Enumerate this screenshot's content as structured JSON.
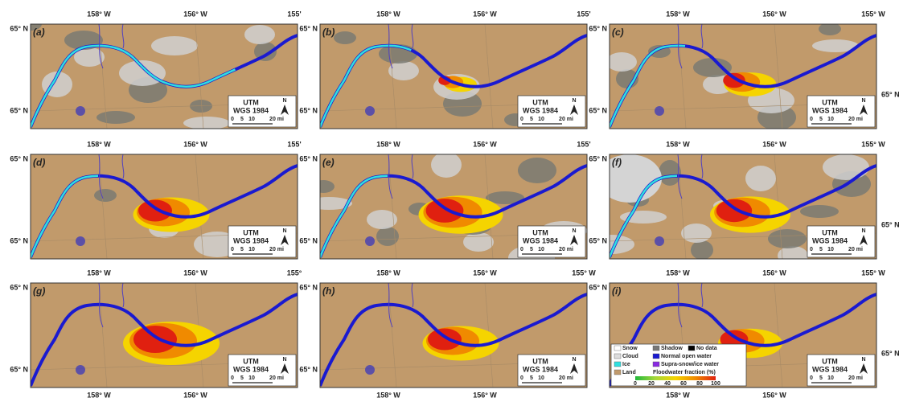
{
  "panels": [
    {
      "label": "(a)",
      "top": [
        "158° W",
        "156° W",
        "155'"
      ],
      "left": [
        "65° N",
        "65° N"
      ]
    },
    {
      "label": "(b)",
      "top": [
        "158° W",
        "156° W",
        "155'"
      ],
      "left": [
        "65° N",
        "65° N"
      ]
    },
    {
      "label": "(c)",
      "top": [
        "158° W",
        "156° W",
        "155° W"
      ],
      "left": [
        "65° N",
        "65° N"
      ],
      "right": [
        "65° N"
      ]
    },
    {
      "label": "(d)",
      "top": [
        "158° W",
        "156° W",
        "155'"
      ],
      "left": [
        "65° N",
        "65° N"
      ]
    },
    {
      "label": "(e)",
      "top": [
        "158° W",
        "156° W",
        "155'"
      ],
      "left": [
        "65° N",
        "65° N"
      ]
    },
    {
      "label": "(f)",
      "top": [
        "158° W",
        "156° W",
        "155° W"
      ],
      "left": [
        "65° N",
        "65° N"
      ],
      "right": [
        "65° N"
      ]
    },
    {
      "label": "(g)",
      "top": [
        "158° W",
        "156° W",
        "155°"
      ],
      "left": [
        "65° N",
        "65° N"
      ],
      "bottom": [
        "158° W",
        "156° W"
      ]
    },
    {
      "label": "(h)",
      "top": [
        "158° W",
        "156° W",
        "155° W"
      ],
      "left": [
        "65° N",
        "65° N"
      ],
      "bottom": [
        "158° W",
        "156° W"
      ]
    },
    {
      "label": "(i)",
      "top": [
        "158° W",
        "156° W",
        "155° W"
      ],
      "left": [
        "65° N"
      ],
      "right": [
        "65° N"
      ],
      "bottom": [
        "158° W",
        "156° W"
      ]
    }
  ],
  "scale_box": {
    "line1": "UTM",
    "line2": "WGS 1984",
    "north": "N",
    "ticks": [
      "0",
      "5",
      "10",
      "20 mi"
    ]
  },
  "legend": {
    "items": [
      "Snow",
      "Shadow",
      "No data",
      "Cloud",
      "Normal open water",
      "Ice",
      "Supra-snow/ice water",
      "Land"
    ],
    "fraction_title": "Floodwater fraction (%)",
    "fraction_ticks": [
      "0",
      "20",
      "40",
      "60",
      "80",
      "100"
    ]
  }
}
